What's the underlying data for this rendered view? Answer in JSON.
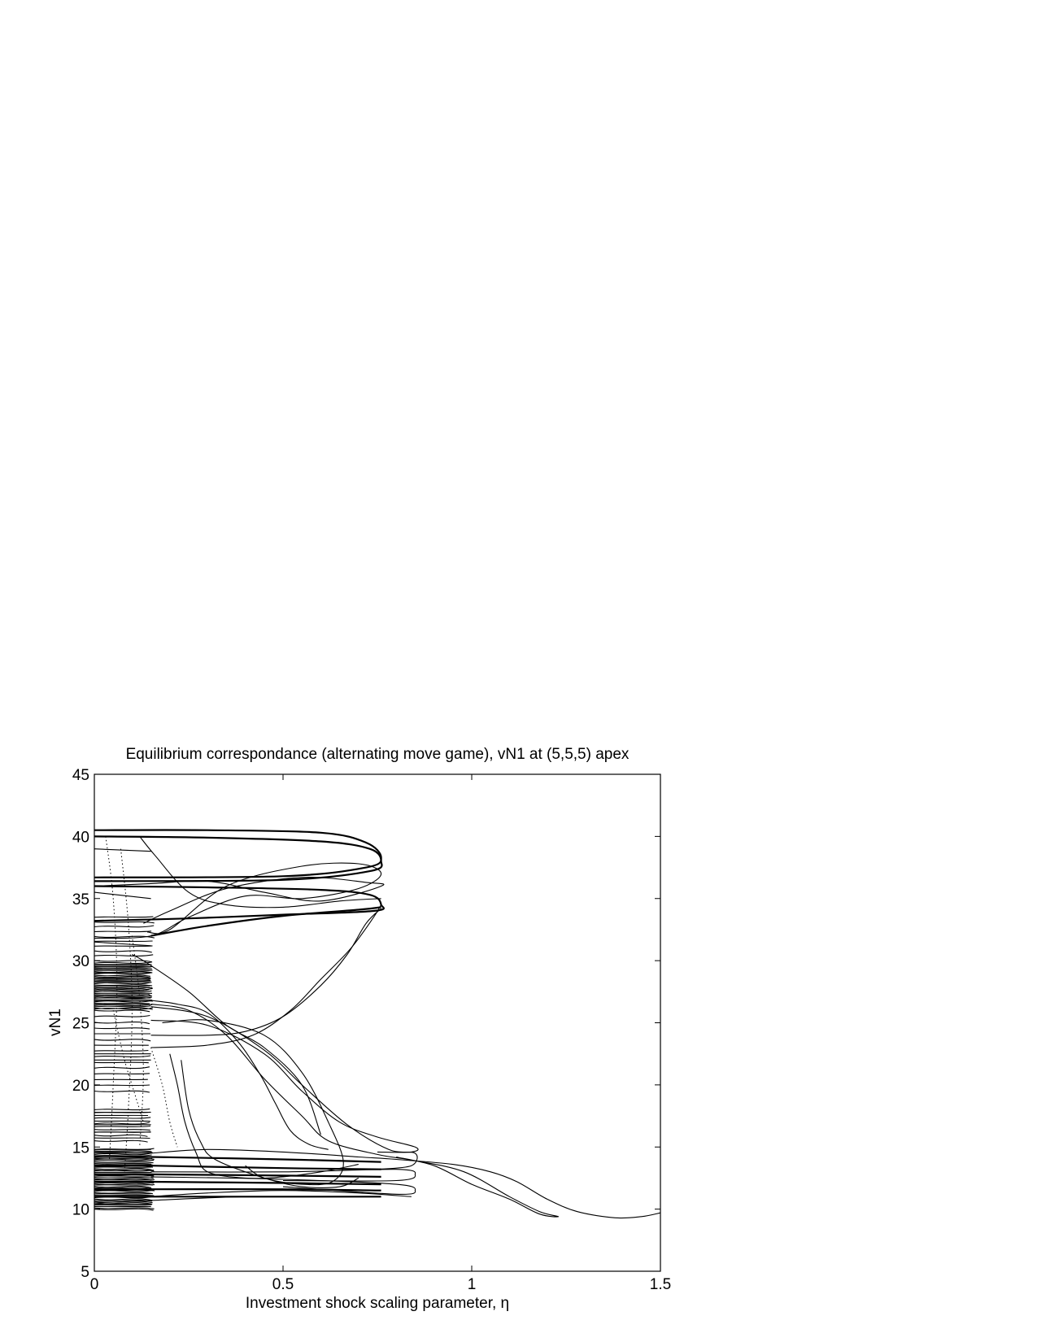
{
  "chart_data": {
    "type": "line",
    "title": "Equilibrium correspondance (alternating move game), vN1 at (5,5,5) apex",
    "xlabel": "Investment shock scaling parameter, η",
    "ylabel": "vN1",
    "xlim": [
      0,
      1.5
    ],
    "ylim": [
      5,
      45
    ],
    "xticks": [
      0,
      0.5,
      1,
      1.5
    ],
    "xtick_labels": [
      "0",
      "0.5",
      "1",
      "1.5"
    ],
    "yticks": [
      5,
      10,
      15,
      20,
      25,
      30,
      35,
      40,
      45
    ],
    "ytick_labels": [
      "5",
      "10",
      "15",
      "20",
      "25",
      "30",
      "35",
      "40",
      "45"
    ],
    "grid": false,
    "legend": "none",
    "line_color": "#000000",
    "series": [
      {
        "style": "thick",
        "points": [
          [
            0,
            40.5
          ],
          [
            0.3,
            40.5
          ],
          [
            0.6,
            40.3
          ],
          [
            0.72,
            39.5
          ],
          [
            0.76,
            38.3
          ],
          [
            0.72,
            37.5
          ],
          [
            0.5,
            36.8
          ],
          [
            0,
            36.7
          ]
        ]
      },
      {
        "style": "thick",
        "points": [
          [
            0,
            40.0
          ],
          [
            0.3,
            39.9
          ],
          [
            0.6,
            39.6
          ],
          [
            0.73,
            39.0
          ],
          [
            0.76,
            38.0
          ],
          [
            0.73,
            37.2
          ],
          [
            0.5,
            36.5
          ],
          [
            0,
            36.4
          ]
        ]
      },
      {
        "style": "thick",
        "points": [
          [
            0,
            36.0
          ],
          [
            0.3,
            35.9
          ],
          [
            0.6,
            35.7
          ],
          [
            0.73,
            35.3
          ],
          [
            0.76,
            34.5
          ],
          [
            0.74,
            34.0
          ],
          [
            0.5,
            33.7
          ],
          [
            0.25,
            33.4
          ],
          [
            0,
            33.2
          ]
        ]
      },
      {
        "style": "thick",
        "points": [
          [
            0.15,
            32.0
          ],
          [
            0.3,
            32.8
          ],
          [
            0.5,
            33.6
          ],
          [
            0.7,
            34.1
          ],
          [
            0.76,
            34.3
          ]
        ]
      },
      {
        "style": "thin",
        "points": [
          [
            0.14,
            32.3
          ],
          [
            0.2,
            32.5
          ],
          [
            0.35,
            36.0
          ],
          [
            0.55,
            37.6
          ],
          [
            0.7,
            37.8
          ],
          [
            0.76,
            37.0
          ],
          [
            0.7,
            35.8
          ],
          [
            0.55,
            35.0
          ],
          [
            0.4,
            35.2
          ],
          [
            0.25,
            33.5
          ],
          [
            0.15,
            32.0
          ],
          [
            0,
            31.8
          ]
        ]
      },
      {
        "style": "thin",
        "points": [
          [
            0.13,
            33.0
          ],
          [
            0.2,
            34.0
          ],
          [
            0.35,
            35.8
          ],
          [
            0.55,
            36.7
          ],
          [
            0.72,
            36.3
          ],
          [
            0.76,
            36.0
          ],
          [
            0.6,
            34.8
          ],
          [
            0.45,
            35.5
          ],
          [
            0.3,
            36.4
          ],
          [
            0.15,
            36.2
          ],
          [
            0,
            36.0
          ]
        ]
      },
      {
        "style": "thin",
        "points": [
          [
            0.12,
            40.0
          ],
          [
            0.16,
            38.5
          ],
          [
            0.25,
            35.5
          ],
          [
            0.35,
            34.5
          ],
          [
            0.5,
            34.3
          ],
          [
            0.65,
            34.8
          ],
          [
            0.76,
            35.0
          ]
        ]
      },
      {
        "style": "thin",
        "points": [
          [
            0.15,
            24.0
          ],
          [
            0.3,
            24.0
          ],
          [
            0.4,
            24.3
          ],
          [
            0.5,
            25.5
          ],
          [
            0.6,
            28.0
          ],
          [
            0.67,
            30.5
          ],
          [
            0.72,
            33.0
          ],
          [
            0.76,
            34.2
          ]
        ]
      },
      {
        "style": "thin",
        "points": [
          [
            0.15,
            23.0
          ],
          [
            0.3,
            23.2
          ],
          [
            0.42,
            24.0
          ],
          [
            0.52,
            26.0
          ],
          [
            0.6,
            28.5
          ],
          [
            0.68,
            31.0
          ],
          [
            0.74,
            33.5
          ],
          [
            0.76,
            34.5
          ]
        ]
      },
      {
        "style": "thin",
        "points": [
          [
            0.15,
            25.2
          ],
          [
            0.3,
            24.8
          ],
          [
            0.45,
            22.5
          ],
          [
            0.55,
            19.5
          ],
          [
            0.65,
            17.0
          ],
          [
            0.75,
            15.8
          ],
          [
            0.85,
            15.0
          ],
          [
            0.84,
            14.6
          ],
          [
            0.75,
            14.6
          ]
        ]
      },
      {
        "style": "thin",
        "points": [
          [
            0.15,
            26.3
          ],
          [
            0.3,
            25.5
          ],
          [
            0.45,
            22.8
          ],
          [
            0.55,
            20.0
          ],
          [
            0.67,
            16.8
          ],
          [
            0.78,
            14.8
          ],
          [
            0.85,
            14.5
          ],
          [
            0.84,
            13.5
          ],
          [
            0.75,
            13.2
          ]
        ]
      },
      {
        "style": "thin",
        "points": [
          [
            0.15,
            26.5
          ],
          [
            0.25,
            26.0
          ],
          [
            0.35,
            24.0
          ],
          [
            0.45,
            20.5
          ],
          [
            0.55,
            17.5
          ],
          [
            0.62,
            15.5
          ],
          [
            0.75,
            14.4
          ],
          [
            0.85,
            13.9
          ],
          [
            0.98,
            13.0
          ],
          [
            1.1,
            11.0
          ],
          [
            1.18,
            9.8
          ],
          [
            1.23,
            9.4
          ],
          [
            1.18,
            9.6
          ],
          [
            1.1,
            10.8
          ],
          [
            1.0,
            12.0
          ],
          [
            0.9,
            13.5
          ],
          [
            0.8,
            14.2
          ]
        ]
      },
      {
        "style": "thin",
        "points": [
          [
            0.15,
            26.8
          ],
          [
            0.22,
            26.5
          ],
          [
            0.3,
            25.8
          ],
          [
            0.38,
            23.5
          ],
          [
            0.44,
            20.8
          ],
          [
            0.48,
            18.5
          ],
          [
            0.52,
            16.3
          ],
          [
            0.57,
            15.2
          ],
          [
            0.62,
            14.8
          ]
        ]
      },
      {
        "style": "thin",
        "points": [
          [
            0.18,
            25.0
          ],
          [
            0.3,
            25.2
          ],
          [
            0.45,
            24.0
          ],
          [
            0.55,
            21.0
          ],
          [
            0.62,
            17.0
          ],
          [
            0.66,
            13.8
          ],
          [
            0.63,
            12.2
          ],
          [
            0.55,
            12.0
          ],
          [
            0.45,
            12.5
          ],
          [
            0.4,
            13.5
          ]
        ]
      },
      {
        "style": "thin",
        "points": [
          [
            0.15,
            14.5
          ],
          [
            0.3,
            14.8
          ],
          [
            0.5,
            14.6
          ],
          [
            0.7,
            14.2
          ],
          [
            0.8,
            14.0
          ],
          [
            0.95,
            13.6
          ],
          [
            1.05,
            13.0
          ],
          [
            1.12,
            12.2
          ],
          [
            1.2,
            10.8
          ],
          [
            1.28,
            9.8
          ],
          [
            1.38,
            9.3
          ],
          [
            1.45,
            9.4
          ],
          [
            1.5,
            9.7
          ]
        ]
      },
      {
        "style": "thin",
        "points": [
          [
            0.15,
            11.0
          ],
          [
            0.3,
            11.3
          ],
          [
            0.5,
            11.5
          ],
          [
            0.7,
            11.3
          ],
          [
            0.84,
            11.0
          ]
        ]
      },
      {
        "style": "thin",
        "points": [
          [
            0.2,
            22.5
          ],
          [
            0.22,
            20.0
          ],
          [
            0.24,
            17.0
          ],
          [
            0.27,
            14.5
          ],
          [
            0.3,
            13.0
          ],
          [
            0.4,
            12.5
          ],
          [
            0.5,
            12.6
          ],
          [
            0.6,
            13.0
          ],
          [
            0.7,
            13.6
          ]
        ]
      },
      {
        "style": "thin",
        "points": [
          [
            0.23,
            22.0
          ],
          [
            0.25,
            18.0
          ],
          [
            0.28,
            15.5
          ],
          [
            0.32,
            14.0
          ],
          [
            0.45,
            12.5
          ],
          [
            0.55,
            11.8
          ],
          [
            0.65,
            11.8
          ],
          [
            0.7,
            12.5
          ]
        ]
      },
      {
        "style": "thin",
        "points": [
          [
            0.1,
            30.5
          ],
          [
            0.14,
            29.8
          ],
          [
            0.25,
            27.5
          ],
          [
            0.35,
            24.8
          ],
          [
            0.45,
            23.0
          ],
          [
            0.55,
            20.0
          ],
          [
            0.6,
            16.0
          ]
        ]
      },
      {
        "style": "thin",
        "points": [
          [
            0,
            29.5
          ],
          [
            0.15,
            29.5
          ]
        ]
      },
      {
        "style": "thin",
        "points": [
          [
            0,
            27.0
          ],
          [
            0.15,
            27.0
          ]
        ]
      },
      {
        "style": "thin",
        "points": [
          [
            0,
            22.5
          ],
          [
            0.15,
            22.5
          ]
        ]
      },
      {
        "style": "thin",
        "points": [
          [
            0,
            22.0
          ],
          [
            0.15,
            22.0
          ]
        ]
      },
      {
        "style": "thin",
        "points": [
          [
            0,
            17.8
          ],
          [
            0.15,
            17.8
          ]
        ]
      },
      {
        "style": "thin",
        "points": [
          [
            0,
            16.8
          ],
          [
            0.15,
            16.8
          ]
        ]
      },
      {
        "style": "thin",
        "points": [
          [
            0,
            16.2
          ],
          [
            0.15,
            16.2
          ]
        ]
      },
      {
        "style": "thin",
        "points": [
          [
            0,
            14.8
          ],
          [
            0.15,
            14.8
          ]
        ]
      },
      {
        "style": "thin",
        "points": [
          [
            0,
            10.5
          ],
          [
            0.15,
            10.7
          ],
          [
            0.4,
            11.0
          ],
          [
            0.7,
            11.0
          ]
        ]
      },
      {
        "style": "thin",
        "points": [
          [
            0,
            39.0
          ],
          [
            0.15,
            38.8
          ]
        ]
      },
      {
        "style": "thin",
        "points": [
          [
            0,
            35.5
          ],
          [
            0.15,
            35.0
          ]
        ]
      },
      {
        "style": "thin",
        "points": [
          [
            0,
            31.5
          ],
          [
            0.15,
            31.2
          ]
        ]
      },
      {
        "style": "thick",
        "points": [
          [
            0,
            14.2
          ],
          [
            0.15,
            14.2
          ],
          [
            0.5,
            14.0
          ],
          [
            0.76,
            13.8
          ]
        ]
      },
      {
        "style": "thick",
        "points": [
          [
            0,
            13.5
          ],
          [
            0.15,
            13.5
          ],
          [
            0.5,
            13.3
          ],
          [
            0.76,
            13.2
          ]
        ]
      },
      {
        "style": "thick",
        "points": [
          [
            0,
            12.8
          ],
          [
            0.15,
            12.8
          ],
          [
            0.5,
            12.7
          ],
          [
            0.76,
            12.6
          ]
        ]
      },
      {
        "style": "thick",
        "points": [
          [
            0,
            12.2
          ],
          [
            0.15,
            12.2
          ],
          [
            0.5,
            12.1
          ],
          [
            0.76,
            12.0
          ]
        ]
      },
      {
        "style": "thick",
        "points": [
          [
            0,
            11.6
          ],
          [
            0.15,
            11.6
          ],
          [
            0.5,
            11.6
          ],
          [
            0.76,
            11.5
          ]
        ]
      },
      {
        "style": "thick",
        "points": [
          [
            0,
            11.0
          ],
          [
            0.15,
            11.0
          ],
          [
            0.5,
            11.0
          ],
          [
            0.76,
            11.0
          ]
        ]
      },
      {
        "style": "thin",
        "points": [
          [
            0.15,
            13.0
          ],
          [
            0.5,
            13.0
          ],
          [
            0.8,
            13.2
          ],
          [
            0.85,
            12.8
          ],
          [
            0.8,
            12.3
          ],
          [
            0.5,
            12.3
          ]
        ]
      },
      {
        "style": "thin",
        "points": [
          [
            0.15,
            12.6
          ],
          [
            0.5,
            12.4
          ],
          [
            0.8,
            12.0
          ],
          [
            0.85,
            11.5
          ],
          [
            0.8,
            11.2
          ],
          [
            0.5,
            11.8
          ]
        ]
      },
      {
        "style": "dotted",
        "points": [
          [
            0.03,
            40.0
          ],
          [
            0.05,
            35.0
          ],
          [
            0.06,
            28.0
          ],
          [
            0.05,
            20.0
          ],
          [
            0.04,
            14.0
          ]
        ]
      },
      {
        "style": "dotted",
        "points": [
          [
            0.07,
            39.0
          ],
          [
            0.09,
            33.0
          ],
          [
            0.1,
            26.0
          ],
          [
            0.09,
            18.0
          ],
          [
            0.08,
            13.0
          ]
        ]
      },
      {
        "style": "dotted",
        "points": [
          [
            0.1,
            32.0
          ],
          [
            0.12,
            27.0
          ],
          [
            0.13,
            21.0
          ],
          [
            0.12,
            15.0
          ]
        ]
      },
      {
        "style": "dotted",
        "points": [
          [
            0.05,
            26.0
          ],
          [
            0.08,
            22.0
          ],
          [
            0.11,
            19.0
          ],
          [
            0.13,
            17.0
          ]
        ]
      },
      {
        "style": "dotted",
        "points": [
          [
            0.15,
            23.0
          ],
          [
            0.18,
            20.0
          ],
          [
            0.2,
            17.0
          ],
          [
            0.22,
            15.0
          ]
        ]
      }
    ],
    "dense_bands": [
      {
        "x": [
          0,
          0.155
        ],
        "y": [
          26.0,
          29.8
        ],
        "lines": 40
      },
      {
        "x": [
          0,
          0.16
        ],
        "y": [
          10.0,
          14.8
        ],
        "lines": 48
      },
      {
        "x": [
          0,
          0.15
        ],
        "y": [
          15.5,
          18.0
        ],
        "lines": 12
      },
      {
        "x": [
          0,
          0.15
        ],
        "y": [
          19.5,
          25.5
        ],
        "lines": 14
      },
      {
        "x": [
          0,
          0.16
        ],
        "y": [
          30.0,
          33.5
        ],
        "lines": 10
      }
    ]
  }
}
